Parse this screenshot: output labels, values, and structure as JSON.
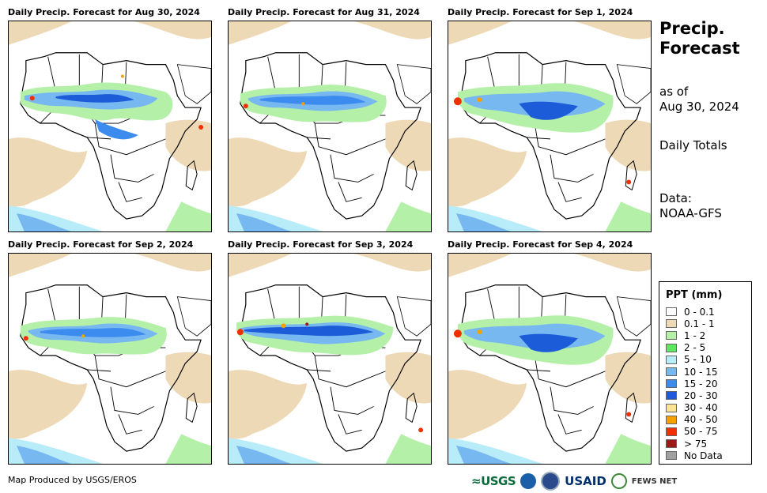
{
  "panels": [
    {
      "title": "Daily Precip. Forecast for Aug 30, 2024"
    },
    {
      "title": "Daily Precip. Forecast for Aug 31, 2024"
    },
    {
      "title": "Daily Precip. Forecast for Sep 1, 2024"
    },
    {
      "title": "Daily Precip. Forecast for Sep 2, 2024"
    },
    {
      "title": "Daily Precip. Forecast for Sep 3, 2024"
    },
    {
      "title": "Daily Precip. Forecast for Sep 4, 2024"
    }
  ],
  "side": {
    "title_line1": "Precip.",
    "title_line2": "Forecast",
    "asof_line1": "as of",
    "asof_line2": "Aug 30, 2024",
    "totals": "Daily Totals",
    "data_line1": "Data:",
    "data_line2": "NOAA-GFS"
  },
  "legend": {
    "title": "PPT (mm)",
    "items": [
      {
        "label": "0 - 0.1",
        "color": "#ffffff"
      },
      {
        "label": "0.1 - 1",
        "color": "#eed9b6"
      },
      {
        "label": "1 - 2",
        "color": "#b4f0a8"
      },
      {
        "label": "2 - 5",
        "color": "#5ee85e"
      },
      {
        "label": "5 - 10",
        "color": "#b8ecf8"
      },
      {
        "label": "10 - 15",
        "color": "#78b8f0"
      },
      {
        "label": "15 - 20",
        "color": "#3c8cf0"
      },
      {
        "label": "20 - 30",
        "color": "#1c5cd8"
      },
      {
        "label": "30 - 40",
        "color": "#fce490"
      },
      {
        "label": "40 - 50",
        "color": "#f8a000"
      },
      {
        "label": "50 - 75",
        "color": "#f03000"
      },
      {
        "label": "> 75",
        "color": "#a01818"
      },
      {
        "label": "No Data",
        "color": "#a0a0a0"
      }
    ]
  },
  "footer": {
    "credit": "Map Produced by USGS/EROS"
  },
  "logos": {
    "usgs": "≈USGS",
    "usaid": "USAID",
    "fews": "FEWS NET"
  }
}
